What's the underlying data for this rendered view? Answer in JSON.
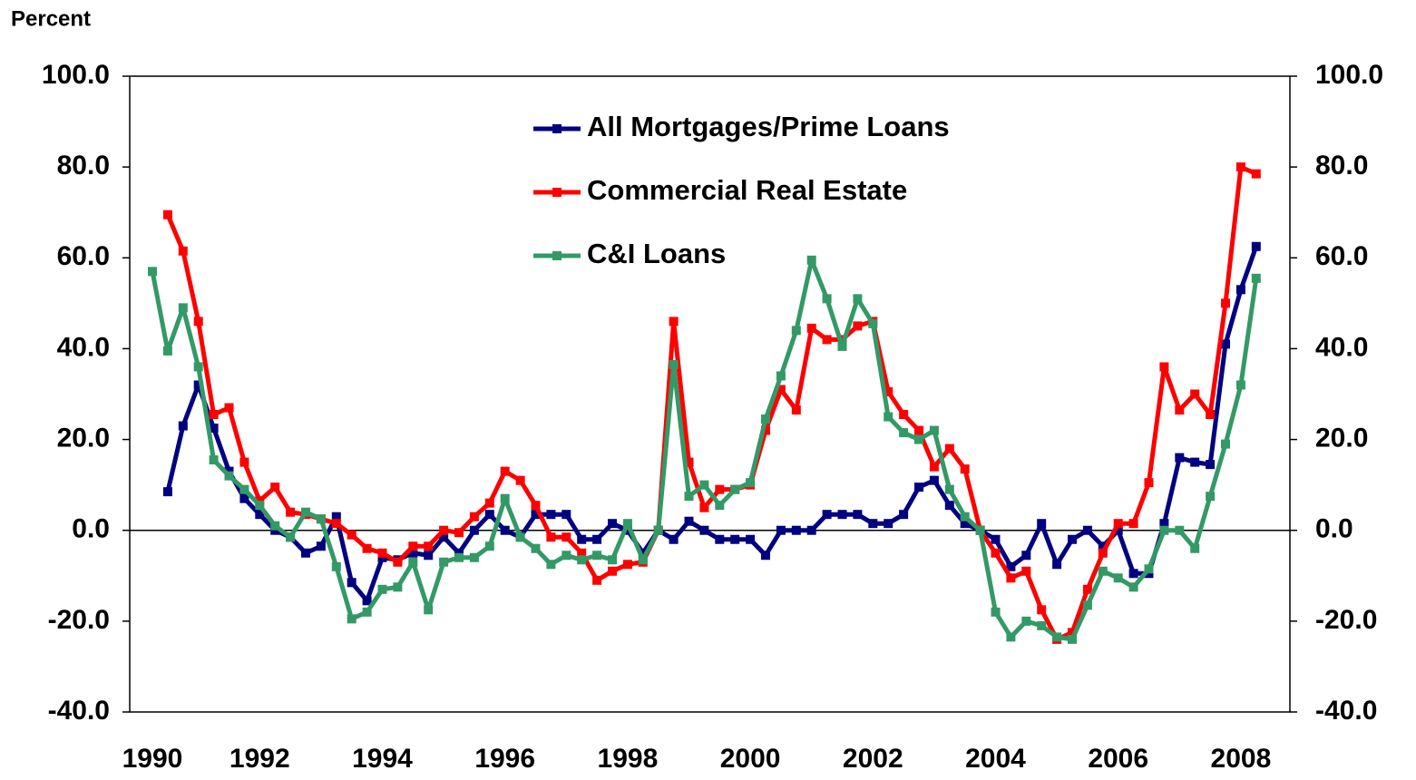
{
  "chart_data": {
    "type": "line",
    "y_label": "Percent",
    "categories": [
      "1990",
      null,
      null,
      null,
      null,
      null,
      null,
      "1992",
      null,
      null,
      null,
      null,
      null,
      null,
      null,
      "1994",
      null,
      null,
      null,
      null,
      null,
      null,
      null,
      "1996",
      null,
      null,
      null,
      null,
      null,
      null,
      null,
      "1998",
      null,
      null,
      null,
      null,
      null,
      null,
      null,
      "2000",
      null,
      null,
      null,
      null,
      null,
      null,
      null,
      "2002",
      null,
      null,
      null,
      null,
      null,
      null,
      null,
      "2004",
      null,
      null,
      null,
      null,
      null,
      null,
      null,
      "2006",
      null,
      null,
      null,
      null,
      null,
      null,
      null,
      "2008",
      null
    ],
    "series": [
      {
        "name": "All Mortgages/Prime Loans",
        "color": "#000080",
        "values": [
          null,
          8.5,
          23,
          32,
          22.5,
          13,
          7,
          3.5,
          0,
          -1.5,
          -5,
          -3.5,
          3,
          -11.5,
          -15.5,
          -6,
          -6.5,
          -5,
          -5.5,
          -1.5,
          -5,
          0,
          3.5,
          0,
          -1.5,
          3.5,
          3.5,
          3.5,
          -2,
          -2,
          1.5,
          0,
          -5,
          0,
          -2,
          2,
          0,
          -2,
          -2,
          -2,
          -5.5,
          0,
          0,
          0,
          3.5,
          3.5,
          3.5,
          1.5,
          1.5,
          3.5,
          9.5,
          11,
          5.5,
          1.5,
          0,
          -2,
          -8,
          -5.5,
          1.5,
          -7.5,
          -2,
          0,
          -3.5,
          0,
          -9.5,
          -9.5,
          1.5,
          16,
          15,
          14.5,
          41,
          53,
          62.5
        ]
      },
      {
        "name": "Commercial Real Estate",
        "color": "#ff0000",
        "values": [
          null,
          69.5,
          61.5,
          46,
          25.5,
          27,
          15,
          6.5,
          9.5,
          4,
          3.5,
          2.5,
          1.5,
          -1,
          -4,
          -5,
          -7,
          -3.5,
          -3.5,
          0,
          -0.5,
          3,
          6,
          13,
          11,
          5.5,
          -1.5,
          -1.5,
          -5,
          -11,
          -9,
          -7.5,
          -7,
          0,
          46,
          15,
          5,
          9,
          9,
          10,
          22,
          31,
          26.5,
          44.5,
          42,
          42,
          45,
          46,
          30.5,
          25.5,
          22,
          14,
          18,
          13.5,
          0,
          -5,
          -10.5,
          -9,
          -17.5,
          -24,
          -22.5,
          -13,
          -5,
          1.5,
          1.5,
          10.5,
          36,
          26.5,
          30,
          25.5,
          50,
          80,
          78.5
        ]
      },
      {
        "name": "C&I Loans",
        "color": "#339966",
        "values": [
          57,
          39.5,
          49,
          36,
          15.5,
          12,
          9,
          5.5,
          1,
          -1.5,
          4,
          2.5,
          -8,
          -19.5,
          -18,
          -13,
          -12.5,
          -7,
          -17.5,
          -7,
          -6,
          -6,
          -3.5,
          7,
          -1.5,
          -4,
          -7.5,
          -5.5,
          -6.5,
          -5.5,
          -6.5,
          1.5,
          -6.5,
          0,
          36.5,
          7.5,
          10,
          5.5,
          9,
          10.5,
          24.5,
          34,
          44,
          59.5,
          51,
          40.5,
          51,
          45.5,
          25,
          21.5,
          20,
          22,
          9,
          3,
          0,
          -18,
          -23.5,
          -20,
          -21,
          -23.5,
          -24,
          -16.5,
          -9,
          -10.5,
          -12.5,
          -8.5,
          0,
          0,
          -4,
          7.5,
          19,
          32,
          55.5
        ]
      }
    ],
    "ylim": [
      -40,
      100
    ],
    "yticks": [
      {
        "value": -40,
        "label": "-40.0"
      },
      {
        "value": -20,
        "label": "-20.0"
      },
      {
        "value": 0,
        "label": "0.0"
      },
      {
        "value": 20,
        "label": "20.0"
      },
      {
        "value": 40,
        "label": "40.0"
      },
      {
        "value": 60,
        "label": "60.0"
      },
      {
        "value": 80,
        "label": "80.0"
      },
      {
        "value": 100,
        "label": "100.0"
      }
    ],
    "y2lim": [
      -40,
      100
    ],
    "y2ticks": [
      {
        "value": -40,
        "label": "-40.0"
      },
      {
        "value": -20,
        "label": "-20.0"
      },
      {
        "value": 0,
        "label": "0.0"
      },
      {
        "value": 20,
        "label": "20.0"
      },
      {
        "value": 40,
        "label": "40.0"
      },
      {
        "value": 60,
        "label": "60.0"
      },
      {
        "value": 80,
        "label": "80.0"
      },
      {
        "value": 100,
        "label": "100.0"
      }
    ],
    "grid": false,
    "legend": "top"
  }
}
